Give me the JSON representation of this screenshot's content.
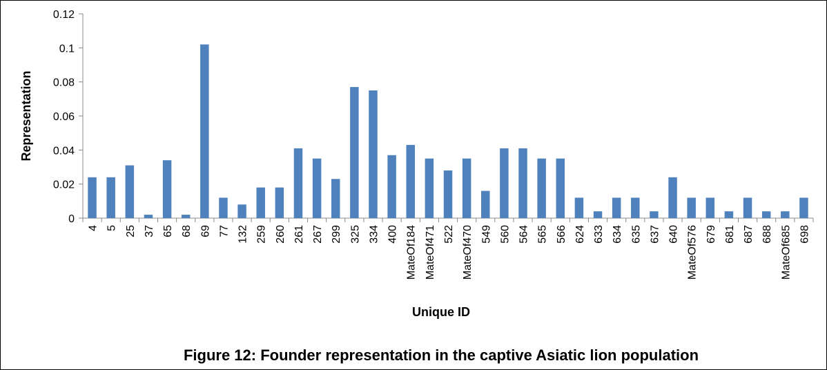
{
  "chart_data": {
    "type": "bar",
    "title": "Figure 12: Founder representation in the captive Asiatic lion population",
    "x_label": "Unique ID",
    "y_label": "Representation",
    "categories": [
      "4",
      "5",
      "25",
      "37",
      "65",
      "68",
      "69",
      "77",
      "132",
      "259",
      "260",
      "261",
      "267",
      "299",
      "325",
      "334",
      "400",
      "MateOf184",
      "MateOf471",
      "522",
      "MateOf470",
      "549",
      "560",
      "564",
      "565",
      "566",
      "624",
      "633",
      "634",
      "635",
      "637",
      "640",
      "MateOf576",
      "679",
      "681",
      "687",
      "688",
      "MateOf685",
      "698"
    ],
    "values": [
      0.024,
      0.024,
      0.031,
      0.002,
      0.034,
      0.002,
      0.102,
      0.012,
      0.008,
      0.018,
      0.018,
      0.041,
      0.035,
      0.023,
      0.077,
      0.075,
      0.037,
      0.043,
      0.035,
      0.028,
      0.035,
      0.016,
      0.041,
      0.041,
      0.035,
      0.035,
      0.012,
      0.004,
      0.012,
      0.012,
      0.004,
      0.024,
      0.012,
      0.012,
      0.004,
      0.012,
      0.004,
      0.004,
      0.012
    ],
    "color": "#4f81bd",
    "ylim": [
      0,
      0.12
    ],
    "yticks": [
      0,
      0.02,
      0.04,
      0.06,
      0.08,
      0.1,
      0.12
    ],
    "grid": false
  }
}
